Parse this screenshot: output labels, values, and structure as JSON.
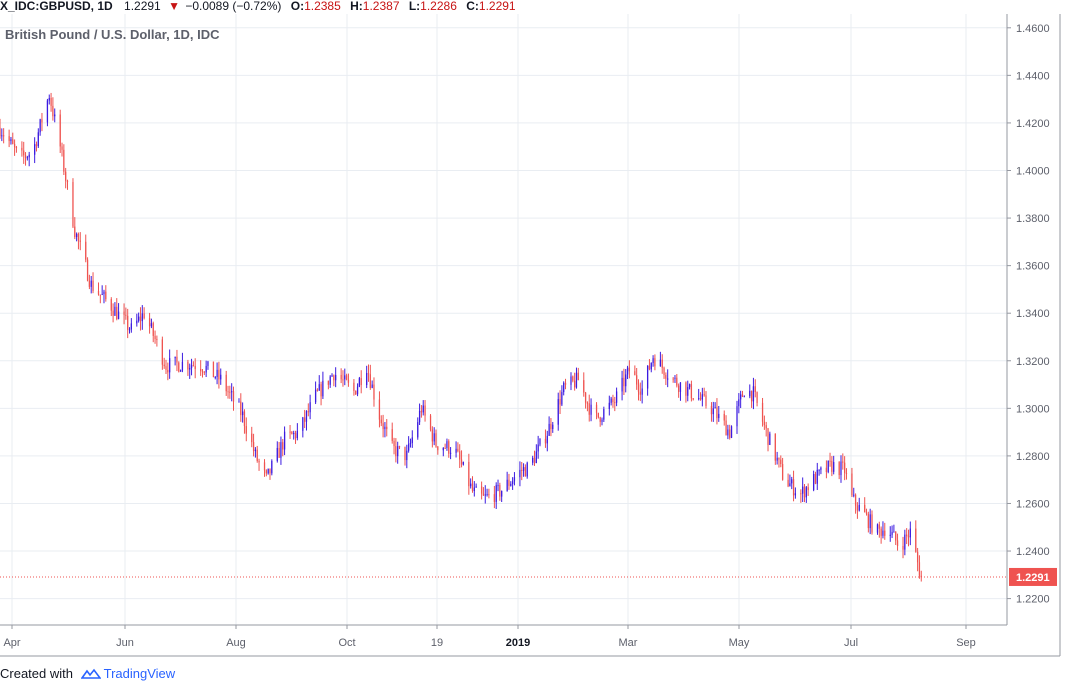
{
  "header": {
    "symbol": "X_IDC:GBPUSD, 1D",
    "last": "1.2291",
    "arrow": "▼",
    "change": "−0.0089 (−0.72%)",
    "o_label": "O:",
    "o_value": "1.2385",
    "h_label": "H:",
    "h_value": "1.2387",
    "l_label": "L:",
    "l_value": "1.2286",
    "c_label": "C:",
    "c_value": "1.2291"
  },
  "chart_title": "British Pound / U.S. Dollar, 1D, IDC",
  "footer": {
    "created_with": "Created with",
    "brand": "TradingView"
  },
  "colors": {
    "up": "#3b1be0",
    "down": "#ef5350",
    "grid": "#e9edf2",
    "price_line": "#ef5350",
    "tv_blue": "#2962ff"
  },
  "chart_data": {
    "type": "line",
    "style": "candlestick",
    "x_ticks": [
      "Apr",
      "Jun",
      "Aug",
      "Oct",
      "19",
      "2019",
      "Mar",
      "May",
      "Jul",
      "Sep"
    ],
    "y_ticks": [
      "1.4600",
      "1.4400",
      "1.4200",
      "1.4000",
      "1.3800",
      "1.3600",
      "1.3400",
      "1.3200",
      "1.3000",
      "1.2800",
      "1.2600",
      "1.2400",
      "1.2200"
    ],
    "ylim": [
      1.2089,
      1.4658
    ],
    "last_price_label": "1.2291",
    "last_price": 1.2291,
    "x_range": [
      "2018-03-21",
      "2019-09-24"
    ],
    "series": [
      {
        "x": [
          "2018-03-21",
          "2018-04-01",
          "2018-04-08",
          "2018-04-17",
          "2018-04-23",
          "2018-05-01",
          "2018-05-10",
          "2018-05-21",
          "2018-06-01",
          "2018-06-08",
          "2018-06-20",
          "2018-07-01",
          "2018-07-10",
          "2018-07-20",
          "2018-08-01",
          "2018-08-08",
          "2018-08-14",
          "2018-08-24",
          "2018-09-01",
          "2018-09-10",
          "2018-09-20",
          "2018-10-01",
          "2018-10-08",
          "2018-10-15",
          "2018-10-22",
          "2018-10-30",
          "2018-11-07",
          "2018-11-15",
          "2018-11-25",
          "2018-12-05",
          "2018-12-11",
          "2018-12-20",
          "2019-01-01",
          "2019-01-05",
          "2019-01-15",
          "2019-01-24",
          "2019-02-01",
          "2019-02-10",
          "2019-02-21",
          "2019-03-01",
          "2019-03-08",
          "2019-03-14",
          "2019-03-25",
          "2019-04-05",
          "2019-04-15",
          "2019-04-25",
          "2019-05-03",
          "2019-05-08",
          "2019-05-15",
          "2019-05-25",
          "2019-06-03",
          "2019-06-10",
          "2019-06-20",
          "2019-06-27",
          "2019-07-01",
          "2019-07-08",
          "2019-07-15",
          "2019-07-20",
          "2019-07-27",
          "2019-08-02",
          "2019-08-06",
          "2019-08-08"
        ],
        "values": [
          1.418,
          1.405,
          1.408,
          1.432,
          1.41,
          1.375,
          1.352,
          1.343,
          1.333,
          1.34,
          1.318,
          1.319,
          1.318,
          1.312,
          1.297,
          1.28,
          1.27,
          1.287,
          1.29,
          1.305,
          1.315,
          1.307,
          1.318,
          1.297,
          1.283,
          1.28,
          1.3,
          1.285,
          1.283,
          1.265,
          1.262,
          1.265,
          1.274,
          1.275,
          1.29,
          1.308,
          1.312,
          1.295,
          1.303,
          1.316,
          1.308,
          1.322,
          1.312,
          1.306,
          1.3,
          1.29,
          1.308,
          1.306,
          1.29,
          1.27,
          1.264,
          1.27,
          1.276,
          1.274,
          1.262,
          1.255,
          1.248,
          1.25,
          1.242,
          1.248,
          1.235,
          1.229
        ]
      }
    ]
  }
}
